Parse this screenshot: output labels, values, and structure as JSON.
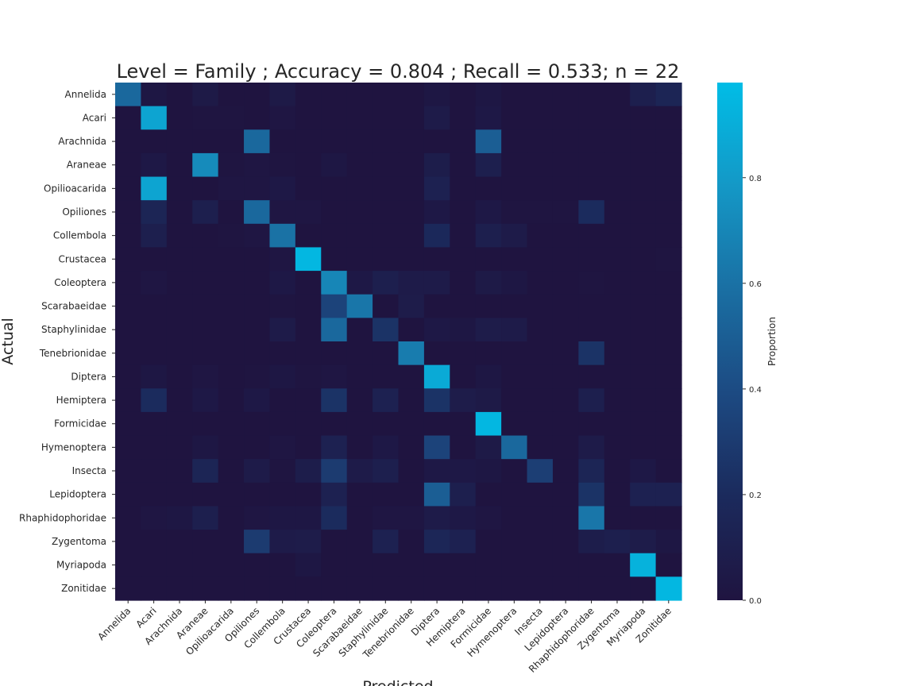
{
  "chart_data": {
    "type": "heatmap",
    "title": "Level = Family ; Accuracy = 0.804 ; Recall = 0.533; n = 22",
    "xlabel": "Predicted",
    "ylabel": "Actual",
    "colorbar_label": "Proportion",
    "colorbar_ticks": [
      "0.0",
      "0.2",
      "0.4",
      "0.6",
      "0.8"
    ],
    "vmin": 0,
    "vmax": 0.98,
    "categories": [
      "Annelida",
      "Acari",
      "Arachnida",
      "Araneae",
      "Opilioacarida",
      "Opiliones",
      "Collembola",
      "Crustacea",
      "Coleoptera",
      "Scarabaeidae",
      "Staphylinidae",
      "Tenebrionidae",
      "Diptera",
      "Hemiptera",
      "Formicidae",
      "Hymenoptera",
      "Insecta",
      "Lepidoptera",
      "Rhaphidophoridae",
      "Zygentoma",
      "Myriapoda",
      "Zonitidae"
    ],
    "colorscale": [
      "#1f1440",
      "#1b2a5c",
      "#1c4a82",
      "#1a6fa3",
      "#1498c6",
      "#00bde6"
    ],
    "matrix": [
      [
        0.55,
        0.03,
        0,
        0.05,
        0,
        0,
        0.05,
        0,
        0,
        0,
        0,
        0,
        0.03,
        0,
        0.03,
        0,
        0,
        0,
        0,
        0,
        0.1,
        0.15
      ],
      [
        0,
        0.85,
        0,
        0.01,
        0.01,
        0,
        0.02,
        0,
        0,
        0,
        0,
        0,
        0.06,
        0,
        0.04,
        0,
        0,
        0,
        0,
        0,
        0,
        0
      ],
      [
        0,
        0,
        0,
        0,
        0,
        0.55,
        0,
        0,
        0,
        0,
        0,
        0,
        0,
        0,
        0.5,
        0,
        0,
        0,
        0,
        0,
        0,
        0
      ],
      [
        0,
        0.04,
        0,
        0.72,
        0.01,
        0.02,
        0.01,
        0,
        0.03,
        0,
        0,
        0,
        0.08,
        0,
        0.1,
        0,
        0,
        0,
        0,
        0,
        0,
        0
      ],
      [
        0,
        0.85,
        0,
        0,
        0.02,
        0.02,
        0.04,
        0,
        0,
        0,
        0,
        0,
        0.12,
        0,
        0,
        0,
        0,
        0,
        0,
        0,
        0,
        0
      ],
      [
        0,
        0.15,
        0,
        0.1,
        0,
        0.55,
        0.02,
        0.02,
        0,
        0,
        0,
        0,
        0.04,
        0,
        0.04,
        0.01,
        0.01,
        0.01,
        0.2,
        0,
        0,
        0
      ],
      [
        0,
        0.1,
        0,
        0,
        0.01,
        0.02,
        0.6,
        0,
        0,
        0,
        0,
        0,
        0.18,
        0,
        0.1,
        0.06,
        0,
        0,
        0,
        0,
        0,
        0
      ],
      [
        0,
        0,
        0,
        0,
        0,
        0,
        0.02,
        0.95,
        0,
        0,
        0,
        0,
        0,
        0,
        0,
        0,
        0,
        0,
        0,
        0,
        0,
        0.01
      ],
      [
        0,
        0.02,
        0,
        0,
        0,
        0,
        0.04,
        0,
        0.7,
        0.04,
        0.1,
        0.06,
        0.06,
        0,
        0.05,
        0.03,
        0,
        0,
        0.01,
        0,
        0,
        0
      ],
      [
        0,
        0,
        0,
        0,
        0,
        0,
        0.01,
        0,
        0.35,
        0.62,
        0,
        0.07,
        0,
        0,
        0,
        0,
        0,
        0,
        0,
        0,
        0,
        0
      ],
      [
        0,
        0,
        0,
        0,
        0,
        0,
        0.06,
        0,
        0.55,
        0,
        0.25,
        0,
        0.04,
        0.03,
        0.07,
        0.06,
        0,
        0,
        0,
        0,
        0,
        0
      ],
      [
        0,
        0,
        0,
        0,
        0,
        0,
        0,
        0,
        0,
        0,
        0,
        0.65,
        0,
        0,
        0,
        0,
        0,
        0,
        0.25,
        0,
        0,
        0
      ],
      [
        0,
        0.03,
        0,
        0.02,
        0,
        0.01,
        0.03,
        0.01,
        0.02,
        0,
        0,
        0,
        0.88,
        0,
        0.03,
        0,
        0,
        0,
        0,
        0,
        0,
        0
      ],
      [
        0,
        0.2,
        0,
        0.04,
        0,
        0.04,
        0,
        0,
        0.25,
        0,
        0.12,
        0,
        0.25,
        0.07,
        0.05,
        0,
        0,
        0,
        0.1,
        0,
        0,
        0
      ],
      [
        0,
        0,
        0,
        0,
        0,
        0,
        0,
        0,
        0,
        0,
        0,
        0,
        0,
        0,
        0.95,
        0,
        0,
        0,
        0,
        0,
        0,
        0
      ],
      [
        0,
        0,
        0,
        0.03,
        0,
        0,
        0.02,
        0,
        0.12,
        0,
        0.04,
        0,
        0.35,
        0,
        0.05,
        0.55,
        0,
        0,
        0.06,
        0,
        0,
        0
      ],
      [
        0,
        0,
        0,
        0.15,
        0,
        0.06,
        0.01,
        0.08,
        0.3,
        0.06,
        0.1,
        0,
        0.04,
        0.04,
        0.03,
        0,
        0.32,
        0,
        0.15,
        0,
        0.04,
        0
      ],
      [
        0,
        0,
        0,
        0,
        0,
        0,
        0,
        0,
        0.12,
        0,
        0,
        0,
        0.5,
        0.1,
        0,
        0,
        0,
        0,
        0.25,
        0,
        0.12,
        0.12
      ],
      [
        0,
        0.02,
        0.03,
        0.1,
        0,
        0.02,
        0.03,
        0.03,
        0.2,
        0,
        0.02,
        0.02,
        0.06,
        0.04,
        0.02,
        0,
        0,
        0,
        0.62,
        0,
        0,
        0
      ],
      [
        0,
        0,
        0,
        0,
        0,
        0.3,
        0.06,
        0.07,
        0,
        0,
        0.12,
        0,
        0.16,
        0.12,
        0,
        0,
        0,
        0,
        0.08,
        0.1,
        0.07,
        0.03
      ],
      [
        0,
        0,
        0,
        0,
        0,
        0,
        0,
        0.03,
        0,
        0,
        0,
        0,
        0,
        0,
        0,
        0,
        0,
        0,
        0,
        0,
        0.92,
        0
      ],
      [
        0,
        0,
        0,
        0,
        0,
        0,
        0,
        0,
        0,
        0,
        0,
        0,
        0,
        0,
        0,
        0,
        0,
        0,
        0,
        0,
        0,
        0.95
      ]
    ]
  }
}
